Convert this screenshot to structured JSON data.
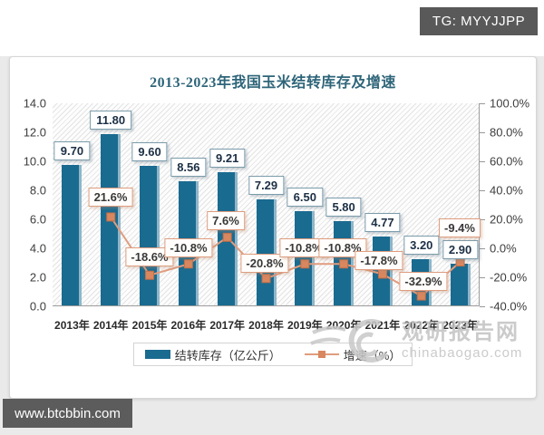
{
  "page": {
    "tg_badge": "TG: MYYJJPP",
    "site_badge": "www.btcbbin.com",
    "watermark": {
      "name": "观研报告网",
      "site": "chinabaogao.com"
    }
  },
  "chart_data": {
    "type": "combo",
    "title": "2013-2023年我国玉米结转库存及增速",
    "categories": [
      "2013年",
      "2014年",
      "2015年",
      "2016年",
      "2017年",
      "2018年",
      "2019年",
      "2020年",
      "2021年",
      "2022年",
      "2023年"
    ],
    "series": [
      {
        "name": "结转库存（亿公斤）",
        "type": "bar",
        "color": "#1a6b90",
        "values": [
          9.7,
          11.8,
          9.6,
          8.56,
          9.21,
          7.29,
          6.5,
          5.8,
          4.77,
          3.2,
          2.9
        ]
      },
      {
        "name": "增速（%）",
        "type": "line",
        "color": "#e09c7e",
        "marker_color": "#d8875f",
        "values": [
          null,
          21.6,
          -18.6,
          -10.8,
          7.6,
          -20.8,
          -10.8,
          -10.8,
          -17.8,
          -32.9,
          -9.4
        ]
      }
    ],
    "left_axis": {
      "min": 0,
      "max": 14,
      "step": 2,
      "decimals": 1
    },
    "right_axis": {
      "min": -40,
      "max": 100,
      "step": 20,
      "decimals": 1,
      "suffix": "%"
    },
    "grid": "hatched-background, no gridlines",
    "legend_position": "bottom-center"
  }
}
